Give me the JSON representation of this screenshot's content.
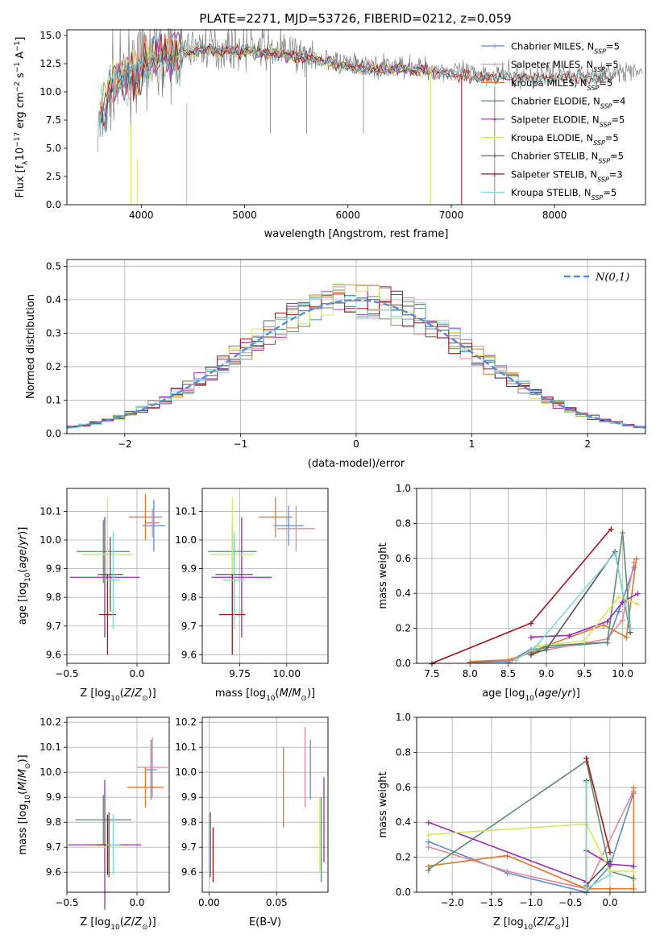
{
  "title": "PLATE=2271, MJD=53726, FIBERID=0212, z=0.059",
  "colors": {
    "chabrier_miles": "#5b8bd8",
    "salpeter_miles": "#e8869a",
    "kroupa_miles": "#de7a2a",
    "chabrier_elodie": "#5a8f6a",
    "salpeter_elodie": "#9b2fb5",
    "kroupa_elodie": "#d6e85e",
    "chabrier_stelib": "#555555",
    "salpeter_stelib": "#a31515",
    "kroupa_stelib": "#7fd8da",
    "data": "#808080",
    "normal": "#5b8bd8",
    "grid": "#b0b0b0"
  },
  "legend_entries": [
    {
      "key": "chabrier_miles",
      "label": "Chabrier MILES, N",
      "sub": "SSP",
      "suffix": "=5"
    },
    {
      "key": "salpeter_miles",
      "label": "Salpeter MILES, N",
      "sub": "SSP",
      "suffix": "=5"
    },
    {
      "key": "kroupa_miles",
      "label": "Kroupa MILES, N",
      "sub": "SSP",
      "suffix": "=5"
    },
    {
      "key": "chabrier_elodie",
      "label": "Chabrier ELODIE, N",
      "sub": "SSP",
      "suffix": "=4"
    },
    {
      "key": "salpeter_elodie",
      "label": "Salpeter ELODIE, N",
      "sub": "SSP",
      "suffix": "=5"
    },
    {
      "key": "kroupa_elodie",
      "label": "Kroupa ELODIE, N",
      "sub": "SSP",
      "suffix": "=5"
    },
    {
      "key": "chabrier_stelib",
      "label": "Chabrier STELIB, N",
      "sub": "SSP",
      "suffix": "=5"
    },
    {
      "key": "salpeter_stelib",
      "label": "Salpeter STELIB, N",
      "sub": "SSP",
      "suffix": "=3"
    },
    {
      "key": "kroupa_stelib",
      "label": "Kroupa STELIB, N",
      "sub": "SSP",
      "suffix": "=5"
    }
  ],
  "chart_data": [
    {
      "id": "spectrum",
      "type": "line",
      "xlabel": "wavelength [Angstrom, rest frame]",
      "ylabel": "Flux [f",
      "xlim": [
        3280,
        8880
      ],
      "ylim": [
        0,
        15.5
      ],
      "xticks": [
        4000,
        5000,
        6000,
        7000,
        8000
      ],
      "yticks": [
        0.0,
        2.5,
        5.0,
        7.5,
        10.0,
        12.5,
        15.0
      ],
      "grid": false,
      "legend_location": "upper right",
      "continuum_points": [
        [
          3600,
          8.0
        ],
        [
          3700,
          10.5
        ],
        [
          3800,
          11.4
        ],
        [
          3950,
          12.0
        ],
        [
          4100,
          13.2
        ],
        [
          4300,
          13.6
        ],
        [
          4600,
          14.0
        ],
        [
          5000,
          13.9
        ],
        [
          5300,
          13.7
        ],
        [
          5600,
          13.3
        ],
        [
          5900,
          12.7
        ],
        [
          6100,
          12.4
        ],
        [
          6300,
          12.3
        ],
        [
          6500,
          12.3
        ],
        [
          6700,
          12.2
        ],
        [
          6900,
          12.0
        ],
        [
          7100,
          11.7
        ],
        [
          7400,
          11.6
        ],
        [
          7700,
          11.4
        ],
        [
          8000,
          11.6
        ],
        [
          8300,
          11.5
        ],
        [
          8600,
          11.7
        ]
      ]
    },
    {
      "id": "residuals",
      "type": "histogram",
      "xlabel": "(data-model)/error",
      "ylabel": "Normed distribution",
      "xlim": [
        -2.5,
        2.5
      ],
      "ylim": [
        0,
        0.52
      ],
      "xticks": [
        -2,
        -1,
        0,
        1,
        2
      ],
      "yticks": [
        0.0,
        0.1,
        0.2,
        0.3,
        0.4,
        0.5
      ],
      "grid": true,
      "bin_width": 0.1,
      "normal_label": "N(0,1)",
      "legend_location": "upper right"
    },
    {
      "id": "age_vs_Z",
      "type": "scatter",
      "xlabel": "Z [log",
      "ylabel": "age  [log",
      "xlim": [
        -0.5,
        0.23
      ],
      "ylim": [
        9.57,
        10.18
      ],
      "xticks": [
        -0.5,
        0.0
      ],
      "yticks": [
        9.6,
        9.7,
        9.8,
        9.9,
        10.0,
        10.1
      ],
      "grid": true,
      "points": [
        {
          "key": "chabrier_miles",
          "x": 0.12,
          "y": 10.05,
          "xerr": 0.08,
          "yerr": 0.09
        },
        {
          "key": "salpeter_miles",
          "x": 0.11,
          "y": 10.06,
          "xerr": 0.05,
          "yerr": 0.05
        },
        {
          "key": "kroupa_miles",
          "x": 0.06,
          "y": 10.08,
          "xerr": 0.12,
          "yerr": 0.08
        },
        {
          "key": "chabrier_elodie",
          "x": -0.24,
          "y": 9.96,
          "xerr": 0.19,
          "yerr": 0.11
        },
        {
          "key": "salpeter_elodie",
          "x": -0.23,
          "y": 9.87,
          "xerr": 0.25,
          "yerr": 0.21
        },
        {
          "key": "kroupa_elodie",
          "x": -0.21,
          "y": 9.95,
          "xerr": 0.18,
          "yerr": 0.2
        },
        {
          "key": "chabrier_stelib",
          "x": -0.19,
          "y": 9.88,
          "xerr": 0.09,
          "yerr": 0.13
        },
        {
          "key": "salpeter_stelib",
          "x": -0.21,
          "y": 9.74,
          "xerr": 0.06,
          "yerr": 0.14
        },
        {
          "key": "kroupa_stelib",
          "x": -0.17,
          "y": 9.86,
          "xerr": 0.05,
          "yerr": 0.17
        }
      ]
    },
    {
      "id": "age_vs_mass",
      "type": "scatter",
      "xlabel": "mass [log",
      "ylabel": "",
      "xlim": [
        9.55,
        10.22
      ],
      "ylim": [
        9.57,
        10.18
      ],
      "xticks": [
        9.75,
        10.0
      ],
      "yticks": [
        9.6,
        9.7,
        9.8,
        9.9,
        10.0,
        10.1
      ],
      "grid": true,
      "points": [
        {
          "key": "chabrier_miles",
          "x": 10.01,
          "y": 10.05,
          "xerr": 0.08,
          "yerr": 0.07
        },
        {
          "key": "salpeter_miles",
          "x": 10.05,
          "y": 10.04,
          "xerr": 0.1,
          "yerr": 0.08
        },
        {
          "key": "kroupa_miles",
          "x": 9.94,
          "y": 10.08,
          "xerr": 0.09,
          "yerr": 0.07
        },
        {
          "key": "chabrier_elodie",
          "x": 9.71,
          "y": 9.96,
          "xerr": 0.13,
          "yerr": 0.09
        },
        {
          "key": "salpeter_elodie",
          "x": 9.76,
          "y": 9.87,
          "xerr": 0.16,
          "yerr": 0.21
        },
        {
          "key": "kroupa_elodie",
          "x": 9.71,
          "y": 9.95,
          "xerr": 0.12,
          "yerr": 0.2
        },
        {
          "key": "chabrier_stelib",
          "x": 9.72,
          "y": 9.88,
          "xerr": 0.1,
          "yerr": 0.13
        },
        {
          "key": "salpeter_stelib",
          "x": 9.71,
          "y": 9.74,
          "xerr": 0.07,
          "yerr": 0.14
        },
        {
          "key": "kroupa_stelib",
          "x": 9.72,
          "y": 9.86,
          "xerr": 0.06,
          "yerr": 0.17
        }
      ]
    },
    {
      "id": "mass_weight_vs_age",
      "type": "line",
      "xlabel": "age  [log",
      "ylabel": "mass weight",
      "xlim": [
        7.3,
        10.3
      ],
      "ylim": [
        0,
        1.0
      ],
      "xticks": [
        7.5,
        8.0,
        8.5,
        9.0,
        9.5,
        10.0
      ],
      "yticks": [
        0.0,
        0.2,
        0.4,
        0.6,
        0.8,
        1.0
      ],
      "grid": true,
      "series": [
        {
          "key": "chabrier_miles",
          "points": [
            [
              8.0,
              0.005
            ],
            [
              8.5,
              0.01
            ],
            [
              8.8,
              0.08
            ],
            [
              9.8,
              0.12
            ],
            [
              9.95,
              0.3
            ],
            [
              10.15,
              0.55
            ]
          ]
        },
        {
          "key": "salpeter_miles",
          "points": [
            [
              8.0,
              0.01
            ],
            [
              8.5,
              0.02
            ],
            [
              8.8,
              0.06
            ],
            [
              9.8,
              0.14
            ],
            [
              10.0,
              0.25
            ],
            [
              10.15,
              0.58
            ]
          ]
        },
        {
          "key": "kroupa_miles",
          "points": [
            [
              8.0,
              0.01
            ],
            [
              8.55,
              0.02
            ],
            [
              9.0,
              0.1
            ],
            [
              9.75,
              0.22
            ],
            [
              10.05,
              0.15
            ],
            [
              10.18,
              0.6
            ]
          ]
        },
        {
          "key": "chabrier_elodie",
          "points": [
            [
              8.8,
              0.05
            ],
            [
              9.0,
              0.1
            ],
            [
              9.8,
              0.12
            ],
            [
              10.0,
              0.75
            ],
            [
              10.1,
              0.2
            ]
          ]
        },
        {
          "key": "salpeter_elodie",
          "points": [
            [
              8.8,
              0.15
            ],
            [
              9.3,
              0.16
            ],
            [
              9.8,
              0.24
            ],
            [
              10.0,
              0.35
            ],
            [
              10.2,
              0.4
            ]
          ]
        },
        {
          "key": "kroupa_elodie",
          "points": [
            [
              8.9,
              0.1
            ],
            [
              9.5,
              0.13
            ],
            [
              9.95,
              0.38
            ],
            [
              10.2,
              0.34
            ]
          ]
        },
        {
          "key": "chabrier_stelib",
          "points": [
            [
              8.8,
              0.05
            ],
            [
              9.0,
              0.08
            ],
            [
              9.9,
              0.64
            ],
            [
              10.1,
              0.18
            ]
          ]
        },
        {
          "key": "salpeter_stelib",
          "points": [
            [
              7.5,
              0.0
            ],
            [
              8.8,
              0.23
            ],
            [
              9.85,
              0.77
            ]
          ]
        },
        {
          "key": "kroupa_stelib",
          "points": [
            [
              8.6,
              0.02
            ],
            [
              8.85,
              0.09
            ],
            [
              9.9,
              0.63
            ],
            [
              10.1,
              0.2
            ]
          ]
        }
      ]
    },
    {
      "id": "mass_vs_Z",
      "type": "scatter",
      "xlabel": "Z [log",
      "ylabel": "mass [log",
      "xlim": [
        -0.5,
        0.23
      ],
      "ylim": [
        9.52,
        10.22
      ],
      "xticks": [
        -0.5,
        0.0
      ],
      "yticks": [
        9.6,
        9.7,
        9.8,
        9.9,
        10.0,
        10.1,
        10.2
      ],
      "grid": true,
      "points": [
        {
          "key": "chabrier_miles",
          "x": 0.1,
          "y": 10.01,
          "xerr": 0.04,
          "yerr": 0.12
        },
        {
          "key": "salpeter_miles",
          "x": 0.11,
          "y": 10.02,
          "xerr": 0.11,
          "yerr": 0.12
        },
        {
          "key": "kroupa_miles",
          "x": 0.06,
          "y": 9.94,
          "xerr": 0.13,
          "yerr": 0.08
        },
        {
          "key": "chabrier_elodie",
          "x": -0.24,
          "y": 9.81,
          "xerr": 0.2,
          "yerr": 0.1
        },
        {
          "key": "salpeter_elodie",
          "x": -0.23,
          "y": 9.71,
          "xerr": 0.26,
          "yerr": 0.26
        },
        {
          "key": "kroupa_elodie",
          "x": -0.21,
          "y": 9.7,
          "xerr": 0.17,
          "yerr": 0.12
        },
        {
          "key": "chabrier_stelib",
          "x": -0.2,
          "y": 9.71,
          "xerr": 0.09,
          "yerr": 0.13
        },
        {
          "key": "salpeter_stelib",
          "x": -0.21,
          "y": 9.71,
          "xerr": 0.07,
          "yerr": 0.12
        },
        {
          "key": "kroupa_stelib",
          "x": -0.17,
          "y": 9.71,
          "xerr": 0.05,
          "yerr": 0.12
        }
      ]
    },
    {
      "id": "mass_vs_ebv",
      "type": "scatter",
      "xlabel": "E(B-V)",
      "ylabel": "",
      "xlim": [
        -0.005,
        0.088
      ],
      "ylim": [
        9.52,
        10.22
      ],
      "xticks": [
        0.0,
        0.05
      ],
      "yticks": [
        9.6,
        9.7,
        9.8,
        9.9,
        10.0,
        10.1,
        10.2
      ],
      "grid": true,
      "points": [
        {
          "key": "chabrier_miles",
          "x": 0.075,
          "y": 10.01,
          "xerr": 0,
          "yerr": 0.12
        },
        {
          "key": "salpeter_miles",
          "x": 0.071,
          "y": 10.02,
          "xerr": 0,
          "yerr": 0.16
        },
        {
          "key": "kroupa_miles",
          "x": 0.055,
          "y": 9.94,
          "xerr": 0,
          "yerr": 0.16
        },
        {
          "key": "chabrier_elodie",
          "x": 0.083,
          "y": 9.73,
          "xerr": 0,
          "yerr": 0.17
        },
        {
          "key": "salpeter_elodie",
          "x": 0.085,
          "y": 9.81,
          "xerr": 0,
          "yerr": 0.17
        },
        {
          "key": "kroupa_elodie",
          "x": 0.082,
          "y": 9.75,
          "xerr": 0,
          "yerr": 0.15
        },
        {
          "key": "chabrier_stelib",
          "x": 0.001,
          "y": 9.71,
          "xerr": 0,
          "yerr": 0.13
        },
        {
          "key": "salpeter_stelib",
          "x": 0.003,
          "y": 9.67,
          "xerr": 0,
          "yerr": 0.11
        },
        {
          "key": "kroupa_stelib",
          "x": 0.0,
          "y": 9.72,
          "xerr": 0,
          "yerr": 0.12
        }
      ]
    },
    {
      "id": "mass_weight_vs_Z",
      "type": "line",
      "xlabel": "Z [log",
      "ylabel": "mass weight",
      "xlim": [
        -2.45,
        0.45
      ],
      "ylim": [
        0,
        1.0
      ],
      "xticks": [
        -2.0,
        -1.5,
        -1.0,
        -0.5,
        0.0
      ],
      "yticks": [
        0.0,
        0.2,
        0.4,
        0.6,
        0.8,
        1.0
      ],
      "grid": true,
      "series": [
        {
          "key": "chabrier_miles",
          "points": [
            [
              -2.3,
              0.29
            ],
            [
              -1.3,
              0.11
            ],
            [
              -0.3,
              0.0
            ],
            [
              0.0,
              0.15
            ],
            [
              0.3,
              0.57
            ]
          ]
        },
        {
          "key": "salpeter_miles",
          "points": [
            [
              -2.3,
              0.26
            ],
            [
              -1.3,
              0.12
            ],
            [
              -0.3,
              0.02
            ],
            [
              0.3,
              0.58
            ]
          ]
        },
        {
          "key": "kroupa_miles",
          "points": [
            [
              -2.3,
              0.15
            ],
            [
              -1.3,
              0.21
            ],
            [
              -0.3,
              0.02
            ],
            [
              0.0,
              0.02
            ],
            [
              0.3,
              0.02
            ],
            [
              0.3,
              0.6
            ]
          ]
        },
        {
          "key": "chabrier_elodie",
          "points": [
            [
              -2.3,
              0.13
            ],
            [
              -0.3,
              0.75
            ],
            [
              0.0,
              0.12
            ],
            [
              0.3,
              0.08
            ]
          ]
        },
        {
          "key": "salpeter_elodie",
          "points": [
            [
              -2.3,
              0.4
            ],
            [
              -0.3,
              0.06
            ],
            [
              -0.3,
              0.24
            ],
            [
              0.0,
              0.16
            ],
            [
              0.3,
              0.15
            ]
          ]
        },
        {
          "key": "kroupa_elodie",
          "points": [
            [
              -2.3,
              0.33
            ],
            [
              -0.3,
              0.39
            ],
            [
              0.0,
              0.12
            ],
            [
              0.3,
              0.12
            ]
          ]
        },
        {
          "key": "chabrier_stelib",
          "points": [
            [
              -0.3,
              0.64
            ],
            [
              -0.3,
              0.04
            ],
            [
              0.0,
              0.18
            ]
          ]
        },
        {
          "key": "salpeter_stelib",
          "points": [
            [
              -0.3,
              0.77
            ],
            [
              0.0,
              0.23
            ]
          ]
        },
        {
          "key": "kroupa_stelib",
          "points": [
            [
              -0.3,
              0.63
            ],
            [
              -0.3,
              0.02
            ],
            [
              0.0,
              0.1
            ]
          ]
        }
      ]
    }
  ]
}
